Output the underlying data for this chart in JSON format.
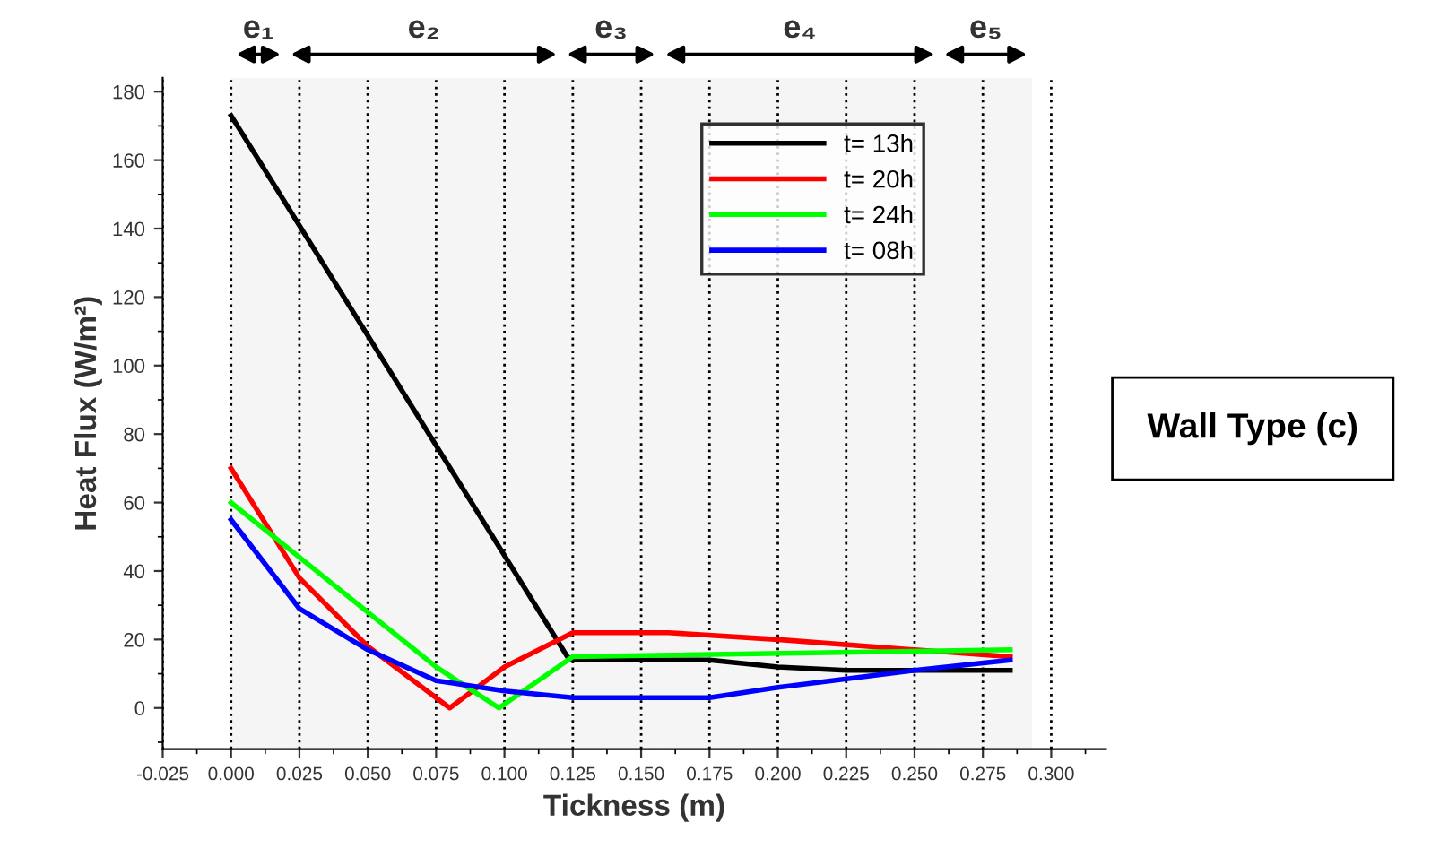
{
  "chart_data": {
    "type": "line",
    "xlabel": "Tickness (m)",
    "ylabel": "Heat Flux (W/m²)",
    "xlim": [
      -0.025,
      0.32
    ],
    "ylim": [
      -12,
      184
    ],
    "xticks": [
      {
        "value": -0.025,
        "label": "-0.025"
      },
      {
        "value": 0,
        "label": "0.000"
      },
      {
        "value": 0.025,
        "label": "0.025"
      },
      {
        "value": 0.05,
        "label": "0.050"
      },
      {
        "value": 0.075,
        "label": "0.075"
      },
      {
        "value": 0.1,
        "label": "0.100"
      },
      {
        "value": 0.125,
        "label": "0.125"
      },
      {
        "value": 0.15,
        "label": "0.150"
      },
      {
        "value": 0.175,
        "label": "0.175"
      },
      {
        "value": 0.2,
        "label": "0.200"
      },
      {
        "value": 0.225,
        "label": "0.225"
      },
      {
        "value": 0.25,
        "label": "0.250"
      },
      {
        "value": 0.275,
        "label": "0.275"
      },
      {
        "value": 0.3,
        "label": "0.300"
      }
    ],
    "yticks": [
      0,
      20,
      40,
      60,
      80,
      100,
      120,
      140,
      160,
      180
    ],
    "grid": "x",
    "legend": "top right",
    "marker": "none",
    "line_style": "solid",
    "series": [
      {
        "name": "t= 13h",
        "color": "#000000",
        "x": [
          0,
          0.123,
          0.125,
          0.175,
          0.2,
          0.225,
          0.25,
          0.285
        ],
        "values": [
          173,
          15,
          14,
          14,
          12,
          11,
          11,
          11
        ]
      },
      {
        "name": "t= 20h",
        "color": "#ff0000",
        "x": [
          0,
          0.025,
          0.05,
          0.08,
          0.1,
          0.125,
          0.16,
          0.2,
          0.25,
          0.285
        ],
        "values": [
          70,
          38,
          18,
          0,
          12,
          22,
          22,
          20,
          17,
          15
        ]
      },
      {
        "name": "t= 24h",
        "color": "#00ff00",
        "x": [
          0,
          0.025,
          0.05,
          0.075,
          0.098,
          0.125,
          0.285
        ],
        "values": [
          60,
          44,
          28,
          12,
          0,
          15,
          17
        ]
      },
      {
        "name": "t= 08h",
        "color": "#0000ff",
        "x": [
          0,
          0.025,
          0.05,
          0.075,
          0.1,
          0.125,
          0.175,
          0.2,
          0.25,
          0.285
        ],
        "values": [
          55,
          29,
          17,
          8,
          5,
          3,
          3,
          6,
          11,
          14
        ]
      }
    ],
    "bands": [
      {
        "axis": "x",
        "from": 0,
        "to": 0.02,
        "label": "e₁"
      },
      {
        "axis": "x",
        "from": 0.02,
        "to": 0.121,
        "label": "e₂"
      },
      {
        "axis": "x",
        "from": 0.121,
        "to": 0.157,
        "label": "e₃"
      },
      {
        "axis": "x",
        "from": 0.157,
        "to": 0.259,
        "label": "e₄"
      },
      {
        "axis": "x",
        "from": 0.259,
        "to": 0.293,
        "label": "e₅"
      }
    ],
    "annotations": [
      "Wall Type (c)"
    ]
  }
}
